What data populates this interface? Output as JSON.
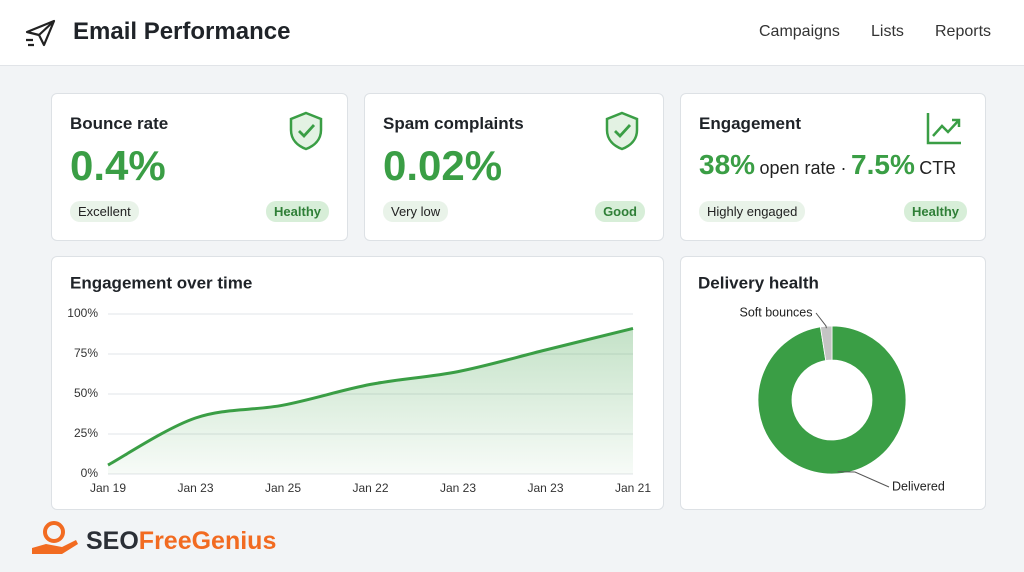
{
  "header": {
    "title": "Email Performance",
    "nav": [
      "Campaigns",
      "Lists",
      "Reports"
    ]
  },
  "cards": [
    {
      "title": "Bounce rate",
      "value": "0.4%",
      "tag_left": "Excellent",
      "tag_right": "Healthy"
    },
    {
      "title": "Spam complaints",
      "value": "0.02%",
      "tag_left": "Very low",
      "tag_right": "Good"
    },
    {
      "title": "Engagement",
      "value": "38%",
      "value_note": "open rate ·",
      "value2": "7.5%",
      "value2_note": "CTR",
      "tag_left": "Highly engaged",
      "tag_right": "Healthy"
    }
  ],
  "chart_data": [
    {
      "type": "line",
      "title": "Engagement over time",
      "categories": [
        "Jan 19",
        "Jan 23",
        "Jan 25",
        "Jan 22",
        "Jan 23",
        "Jan 23",
        "Jan 21"
      ],
      "values": [
        5.6,
        35,
        43,
        56,
        64,
        77.5,
        91
      ],
      "color": "#3a9e45",
      "ylim": [
        0,
        100
      ],
      "yticks": [
        {
          "value": 0,
          "label": "0%"
        },
        {
          "value": 25,
          "label": "25%"
        },
        {
          "value": 50,
          "label": "50%"
        },
        {
          "value": 75,
          "label": "75%"
        },
        {
          "value": 100,
          "label": "100%"
        }
      ],
      "grid": true
    },
    {
      "type": "donut",
      "title": "Delivery health",
      "categories": [
        "Delivered",
        "Soft bounces"
      ],
      "values": [
        97.5,
        2.5
      ],
      "colors": [
        "#3a9e45",
        "#c4c4c4"
      ]
    }
  ],
  "brand": {
    "part1": "SEO",
    "part2": "FreeGenius"
  }
}
